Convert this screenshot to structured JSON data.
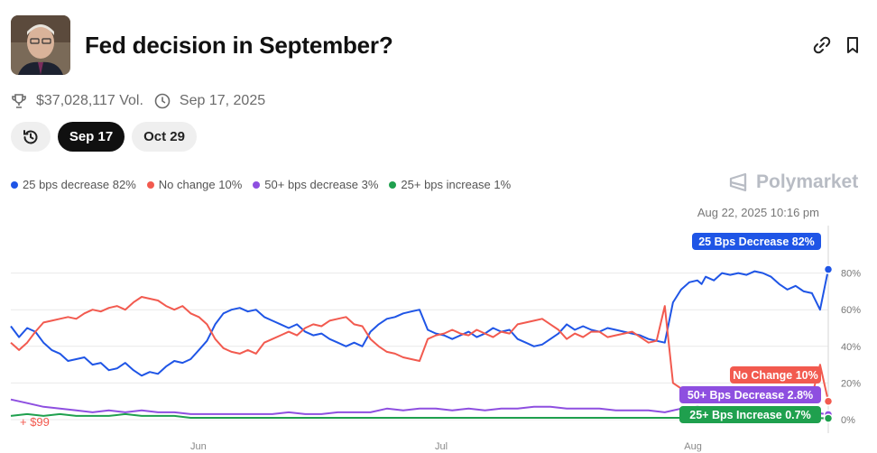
{
  "header": {
    "title": "Fed decision in September?",
    "thumb_icon": "powell-portrait",
    "link_icon": "link-icon",
    "bookmark_icon": "bookmark-icon"
  },
  "meta": {
    "volume": "$37,028,117 Vol.",
    "date": "Sep 17, 2025"
  },
  "tabs": [
    {
      "label": "",
      "icon": "history-icon",
      "active": false
    },
    {
      "label": "Sep 17",
      "active": true
    },
    {
      "label": "Oct 29",
      "active": false
    }
  ],
  "legend": [
    {
      "label": "25 bps decrease 82%",
      "color": "#1f55e6"
    },
    {
      "label": "No change 10%",
      "color": "#f25a4f"
    },
    {
      "label": "50+ bps decrease 3%",
      "color": "#8e4fe0"
    },
    {
      "label": "25+ bps increase 1%",
      "color": "#1fa04e"
    }
  ],
  "brand": "Polymarket",
  "chart_data": {
    "type": "line",
    "hover_label": "Aug 22, 2025 10:16 pm",
    "bottom_label": "+ $99",
    "ylim": [
      0,
      100
    ],
    "yticks": [
      "0%",
      "20%",
      "40%",
      "60%",
      "80%"
    ],
    "xticks": [
      {
        "label": "Jun",
        "x": 0.235
      },
      {
        "label": "Jul",
        "x": 0.532
      },
      {
        "label": "Aug",
        "x": 0.84
      }
    ],
    "series": [
      {
        "name": "25 Bps Decrease 82%",
        "color": "#1f55e6",
        "x": [
          0,
          0.01,
          0.02,
          0.03,
          0.04,
          0.05,
          0.06,
          0.07,
          0.08,
          0.09,
          0.1,
          0.11,
          0.12,
          0.13,
          0.14,
          0.15,
          0.16,
          0.17,
          0.18,
          0.19,
          0.2,
          0.21,
          0.22,
          0.23,
          0.24,
          0.25,
          0.26,
          0.27,
          0.28,
          0.29,
          0.3,
          0.31,
          0.32,
          0.33,
          0.34,
          0.35,
          0.36,
          0.37,
          0.38,
          0.39,
          0.4,
          0.41,
          0.42,
          0.43,
          0.44,
          0.45,
          0.46,
          0.47,
          0.48,
          0.49,
          0.5,
          0.51,
          0.52,
          0.53,
          0.54,
          0.55,
          0.56,
          0.57,
          0.58,
          0.59,
          0.6,
          0.61,
          0.62,
          0.63,
          0.64,
          0.65,
          0.66,
          0.67,
          0.68,
          0.69,
          0.7,
          0.71,
          0.72,
          0.73,
          0.74,
          0.75,
          0.76,
          0.77,
          0.78,
          0.79,
          0.8,
          0.81,
          0.82,
          0.83,
          0.84,
          0.845,
          0.85,
          0.86,
          0.87,
          0.88,
          0.89,
          0.9,
          0.91,
          0.92,
          0.93,
          0.94,
          0.95,
          0.96,
          0.97,
          0.98,
          0.99,
          1.0
        ],
        "y": [
          51,
          45,
          50,
          48,
          42,
          38,
          36,
          32,
          33,
          34,
          30,
          31,
          27,
          28,
          31,
          27,
          24,
          26,
          25,
          29,
          32,
          31,
          33,
          38,
          43,
          52,
          58,
          60,
          61,
          59,
          60,
          56,
          54,
          52,
          50,
          52,
          48,
          46,
          47,
          44,
          42,
          40,
          42,
          40,
          48,
          52,
          55,
          56,
          58,
          59,
          60,
          49,
          47,
          46,
          44,
          46,
          48,
          45,
          47,
          50,
          48,
          49,
          44,
          42,
          40,
          41,
          44,
          47,
          52,
          49,
          51,
          49,
          48,
          50,
          49,
          48,
          47,
          46,
          44,
          43,
          42,
          64,
          71,
          75,
          76,
          74,
          78,
          76,
          80,
          79,
          80,
          79,
          81,
          80,
          78,
          74,
          71,
          73,
          70,
          69,
          60,
          82
        ]
      },
      {
        "name": "No Change 10%",
        "color": "#f25a4f",
        "x": [
          0,
          0.01,
          0.02,
          0.03,
          0.04,
          0.05,
          0.06,
          0.07,
          0.08,
          0.09,
          0.1,
          0.11,
          0.12,
          0.13,
          0.14,
          0.15,
          0.16,
          0.17,
          0.18,
          0.19,
          0.2,
          0.21,
          0.22,
          0.23,
          0.24,
          0.25,
          0.26,
          0.27,
          0.28,
          0.29,
          0.3,
          0.31,
          0.32,
          0.33,
          0.34,
          0.35,
          0.36,
          0.37,
          0.38,
          0.39,
          0.4,
          0.41,
          0.42,
          0.43,
          0.44,
          0.45,
          0.46,
          0.47,
          0.48,
          0.49,
          0.5,
          0.51,
          0.52,
          0.53,
          0.54,
          0.55,
          0.56,
          0.57,
          0.58,
          0.59,
          0.6,
          0.61,
          0.62,
          0.63,
          0.64,
          0.65,
          0.66,
          0.67,
          0.68,
          0.69,
          0.7,
          0.71,
          0.72,
          0.73,
          0.74,
          0.75,
          0.76,
          0.77,
          0.78,
          0.79,
          0.8,
          0.81,
          0.82,
          0.83,
          0.84,
          0.845,
          0.85,
          0.86,
          0.87,
          0.88,
          0.89,
          0.9,
          0.91,
          0.92,
          0.93,
          0.94,
          0.95,
          0.96,
          0.97,
          0.98,
          0.99,
          1.0
        ],
        "y": [
          42,
          38,
          42,
          48,
          53,
          54,
          55,
          56,
          55,
          58,
          60,
          59,
          61,
          62,
          60,
          64,
          67,
          66,
          65,
          62,
          60,
          62,
          58,
          56,
          52,
          44,
          39,
          37,
          36,
          38,
          36,
          42,
          44,
          46,
          48,
          46,
          50,
          52,
          51,
          54,
          55,
          56,
          52,
          51,
          44,
          40,
          37,
          36,
          34,
          33,
          32,
          44,
          46,
          47,
          49,
          47,
          46,
          49,
          47,
          45,
          48,
          47,
          52,
          53,
          54,
          55,
          52,
          49,
          44,
          47,
          45,
          48,
          48,
          45,
          46,
          47,
          48,
          45,
          42,
          43,
          62,
          20,
          17,
          16,
          14,
          15,
          13,
          14,
          12,
          13,
          12,
          13,
          11,
          12,
          12,
          13,
          14,
          15,
          14,
          13,
          30,
          10
        ]
      },
      {
        "name": "50+ Bps Decrease 2.8%",
        "color": "#8e4fe0",
        "x": [
          0,
          0.02,
          0.04,
          0.06,
          0.08,
          0.1,
          0.12,
          0.14,
          0.16,
          0.18,
          0.2,
          0.22,
          0.24,
          0.26,
          0.28,
          0.3,
          0.32,
          0.34,
          0.36,
          0.38,
          0.4,
          0.42,
          0.44,
          0.46,
          0.48,
          0.5,
          0.52,
          0.54,
          0.56,
          0.58,
          0.6,
          0.62,
          0.64,
          0.66,
          0.68,
          0.7,
          0.72,
          0.74,
          0.76,
          0.78,
          0.8,
          0.82,
          0.84,
          0.86,
          0.88,
          0.9,
          0.92,
          0.94,
          0.96,
          0.98,
          1.0
        ],
        "y": [
          11,
          9,
          7,
          6,
          5,
          4,
          5,
          4,
          5,
          4,
          4,
          3,
          3,
          3,
          3,
          3,
          3,
          4,
          3,
          3,
          4,
          4,
          4,
          6,
          5,
          6,
          6,
          5,
          6,
          5,
          6,
          6,
          7,
          7,
          6,
          6,
          6,
          5,
          5,
          5,
          4,
          6,
          7,
          6,
          6,
          5,
          5,
          4,
          5,
          4,
          2.8
        ]
      },
      {
        "name": "25+ Bps Increase 0.7%",
        "color": "#1fa04e",
        "x": [
          0,
          0.02,
          0.04,
          0.06,
          0.08,
          0.1,
          0.12,
          0.14,
          0.16,
          0.18,
          0.2,
          0.22,
          0.24,
          0.26,
          0.28,
          0.3,
          0.32,
          0.34,
          0.36,
          0.38,
          0.4,
          0.42,
          0.44,
          0.46,
          0.48,
          0.5,
          0.52,
          0.54,
          0.56,
          0.58,
          0.6,
          0.62,
          0.64,
          0.66,
          0.68,
          0.7,
          0.72,
          0.74,
          0.76,
          0.78,
          0.8,
          0.82,
          0.84,
          0.86,
          0.88,
          0.9,
          0.92,
          0.94,
          0.96,
          0.98,
          1.0
        ],
        "y": [
          2,
          3,
          2,
          3,
          2,
          2,
          2,
          3,
          2,
          2,
          2,
          1,
          1,
          1,
          1,
          1,
          1,
          1,
          1,
          1,
          1,
          1,
          1,
          1,
          1,
          1,
          1,
          1,
          1,
          1,
          1,
          1,
          1,
          1,
          1,
          1,
          1,
          1,
          1,
          1,
          1,
          1,
          1,
          1,
          1,
          1,
          1,
          1,
          1,
          1,
          0.7
        ]
      }
    ]
  }
}
